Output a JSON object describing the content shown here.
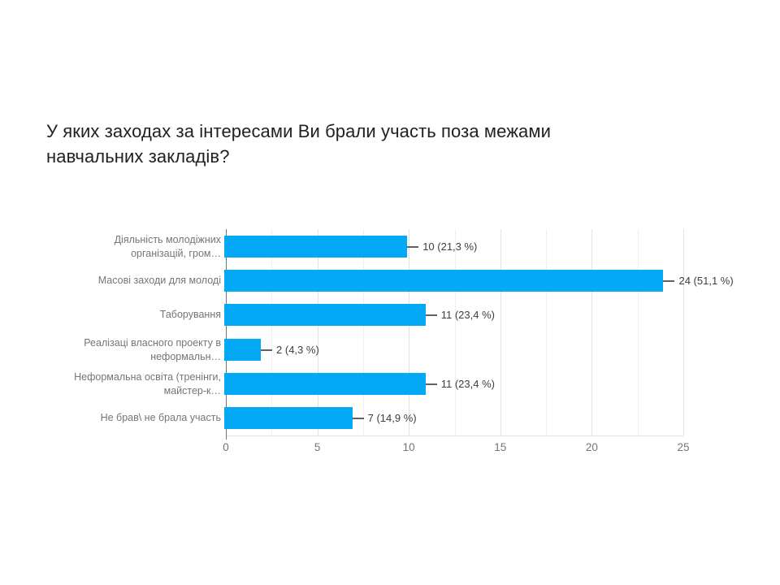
{
  "title": {
    "full": "У яких заходах за інтересами Ви брали участь поза межами навчальних закладів?",
    "lines": [
      "У яких заходах за інтересами Ви брали участь поза межами",
      "навчальних закладів?"
    ]
  },
  "chart_data": {
    "type": "bar",
    "orientation": "horizontal",
    "title": "У яких заходах за інтересами Ви брали участь поза межами навчальних закладів?",
    "categories": [
      "Діяльність молодіжних організацій, гром…",
      "Масові заходи для молоді",
      "Таборування",
      "Реалізаці власного проекту в неформальн…",
      "Неформальна освіта (тренінги, майстер-к…",
      "Не брав\\ не брала участь"
    ],
    "values": [
      10,
      24,
      11,
      2,
      11,
      7
    ],
    "percentages": [
      21.3,
      51.1,
      23.4,
      4.3,
      23.4,
      14.9
    ],
    "value_labels": [
      "10 (21,3 %)",
      "24 (51,1 %)",
      "11 (23,4 %)",
      "2 (4,3 %)",
      "11 (23,4 %)",
      "7 (14,9 %)"
    ],
    "xlabel": "",
    "ylabel": "",
    "xlim": [
      0,
      25
    ],
    "x_ticks": [
      0,
      5,
      10,
      15,
      20,
      25
    ],
    "x_tick_labels": [
      "0",
      "5",
      "10",
      "15",
      "20",
      "25"
    ],
    "minor_grid_step": 2.5,
    "major_grid_step": 5,
    "grid": true,
    "legend": "none"
  },
  "display": {
    "bars": [
      {
        "label_lines": [
          "Діяльність молодіжних",
          "організацій, гром…"
        ]
      },
      {
        "label_lines": [
          "Масові заходи для молоді"
        ]
      },
      {
        "label_lines": [
          "Таборування"
        ]
      },
      {
        "label_lines": [
          "Реалізаці власного проекту в",
          "неформальн…"
        ]
      },
      {
        "label_lines": [
          "Неформальна освіта (тренінги,",
          "майстер-к…"
        ]
      },
      {
        "label_lines": [
          "Не брав\\ не брала участь"
        ]
      }
    ]
  },
  "colors": {
    "bar": "#03a9f4",
    "title_text": "#212121",
    "category_text": "#757575",
    "value_text": "#3c4043",
    "gridline_major": "#e3e3e3",
    "gridline_minor": "#efefef",
    "axis_line": "#757575"
  }
}
